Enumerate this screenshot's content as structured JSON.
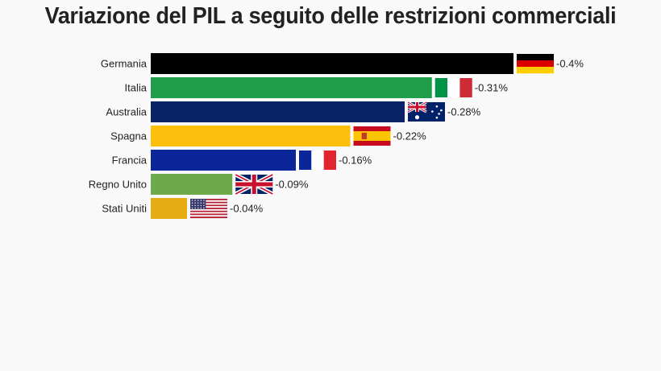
{
  "chart_data": {
    "type": "bar",
    "orientation": "horizontal",
    "title": "Variazione del PIL a seguito delle restrizioni commerciali",
    "xlabel": "",
    "ylabel": "",
    "grid": false,
    "categories": [
      "Germania",
      "Italia",
      "Australia",
      "Spagna",
      "Francia",
      "Regno Unito",
      "Stati Uniti"
    ],
    "values": [
      -0.4,
      -0.31,
      -0.28,
      -0.22,
      -0.16,
      -0.09,
      -0.04
    ],
    "value_labels": [
      "-0.4%",
      "-0.31%",
      "-0.28%",
      "-0.22%",
      "-0.16%",
      "-0.09%",
      "-0.04%"
    ],
    "colors": [
      "#000000",
      "#1e9e4a",
      "#0a2266",
      "#fcbf0c",
      "#0a2699",
      "#6dab4a",
      "#e7ac12"
    ],
    "flag_icons": [
      "flag-germany-icon",
      "flag-italy-icon",
      "flag-australia-icon",
      "flag-spain-icon",
      "flag-france-icon",
      "flag-uk-icon",
      "flag-usa-icon"
    ]
  }
}
